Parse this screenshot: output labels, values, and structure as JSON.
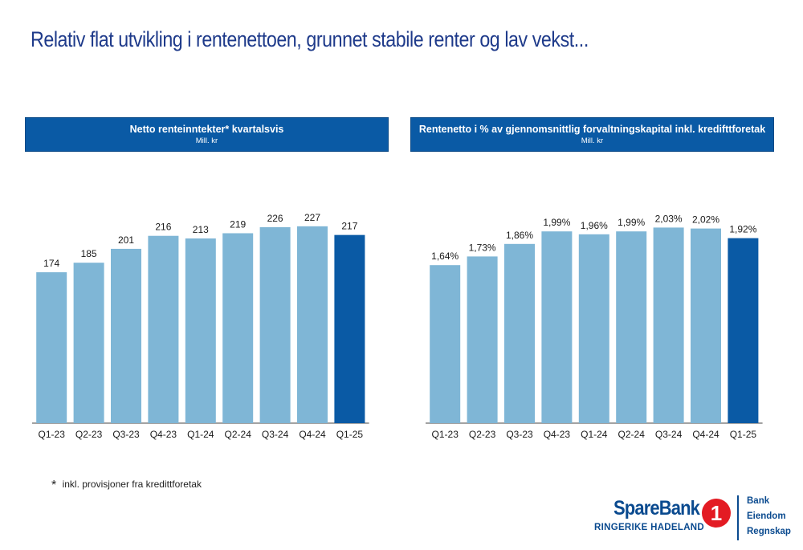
{
  "slide": {
    "title": "Relativ flat utvikling i rentenettoen, grunnet stabile renter og lav vekst..."
  },
  "chart_data": [
    {
      "type": "bar",
      "title": "Netto renteinntekter* kvartalsvis",
      "subtitle": "Mill. kr",
      "categories": [
        "Q1-23",
        "Q2-23",
        "Q3-23",
        "Q4-23",
        "Q1-24",
        "Q2-24",
        "Q3-24",
        "Q4-24",
        "Q1-25"
      ],
      "values": [
        174,
        185,
        201,
        216,
        213,
        219,
        226,
        227,
        217
      ],
      "value_labels": [
        "174",
        "185",
        "201",
        "216",
        "213",
        "219",
        "226",
        "227",
        "217"
      ],
      "ylim": [
        0,
        250
      ],
      "grid": false,
      "colors": {
        "bar": "#7fb6d6",
        "highlight": "#0a5aa5",
        "highlight_index": 8
      }
    },
    {
      "type": "bar",
      "title": "Rentenetto i % av gjennomsnittlig forvaltningskapital inkl. kredifttforetak",
      "subtitle": "Mill. kr",
      "categories": [
        "Q1-23",
        "Q2-23",
        "Q3-23",
        "Q4-23",
        "Q1-24",
        "Q2-24",
        "Q3-24",
        "Q4-24",
        "Q1-25"
      ],
      "values": [
        1.64,
        1.73,
        1.86,
        1.99,
        1.96,
        1.99,
        2.03,
        2.02,
        1.92
      ],
      "value_labels": [
        "1,64%",
        "1,73%",
        "1,86%",
        "1,99%",
        "1,96%",
        "1,99%",
        "2,03%",
        "2,02%",
        "1,92%"
      ],
      "ylim": [
        0,
        2.25
      ],
      "grid": false,
      "colors": {
        "bar": "#7fb6d6",
        "highlight": "#0a5aa5",
        "highlight_index": 8
      }
    }
  ],
  "footnote": {
    "star": "*",
    "text": "inkl. provisjoner fra kredittforetak"
  },
  "logo": {
    "name": "SpareBank",
    "mark": "1",
    "region": "RINGERIKE HADELAND",
    "services": [
      "Bank",
      "Eiendom",
      "Regnskap"
    ]
  }
}
